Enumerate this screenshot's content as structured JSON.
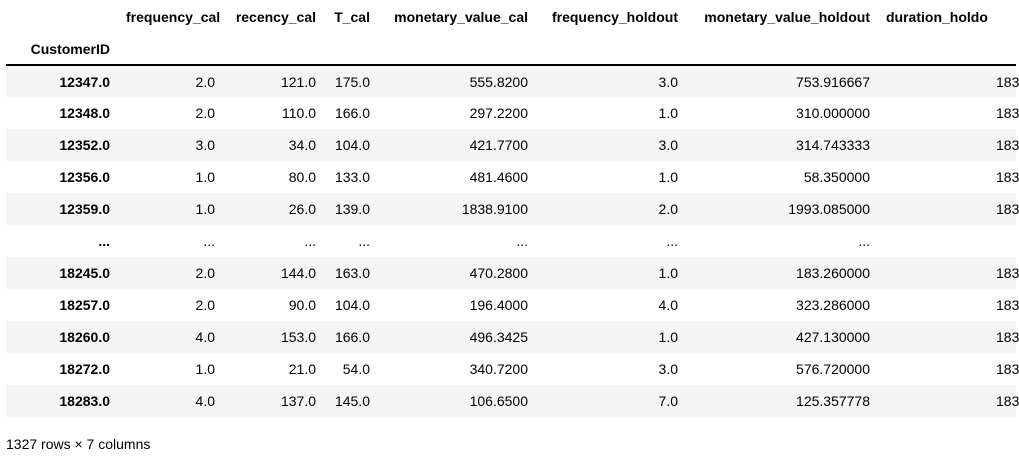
{
  "table": {
    "index_name": "CustomerID",
    "columns": [
      "frequency_cal",
      "recency_cal",
      "T_cal",
      "monetary_value_cal",
      "frequency_holdout",
      "monetary_value_holdout",
      "duration_holdo"
    ],
    "rows": [
      {
        "index": "12347.0",
        "cells": [
          "2.0",
          "121.0",
          "175.0",
          "555.8200",
          "3.0",
          "753.916667",
          "183"
        ]
      },
      {
        "index": "12348.0",
        "cells": [
          "2.0",
          "110.0",
          "166.0",
          "297.2200",
          "1.0",
          "310.000000",
          "183"
        ]
      },
      {
        "index": "12352.0",
        "cells": [
          "3.0",
          "34.0",
          "104.0",
          "421.7700",
          "3.0",
          "314.743333",
          "183"
        ]
      },
      {
        "index": "12356.0",
        "cells": [
          "1.0",
          "80.0",
          "133.0",
          "481.4600",
          "1.0",
          "58.350000",
          "183"
        ]
      },
      {
        "index": "12359.0",
        "cells": [
          "1.0",
          "26.0",
          "139.0",
          "1838.9100",
          "2.0",
          "1993.085000",
          "183"
        ]
      },
      {
        "index": "...",
        "cells": [
          "...",
          "...",
          "...",
          "...",
          "...",
          "...",
          ""
        ]
      },
      {
        "index": "18245.0",
        "cells": [
          "2.0",
          "144.0",
          "163.0",
          "470.2800",
          "1.0",
          "183.260000",
          "183"
        ]
      },
      {
        "index": "18257.0",
        "cells": [
          "2.0",
          "90.0",
          "104.0",
          "196.4000",
          "4.0",
          "323.286000",
          "183"
        ]
      },
      {
        "index": "18260.0",
        "cells": [
          "4.0",
          "153.0",
          "166.0",
          "496.3425",
          "1.0",
          "427.130000",
          "183"
        ]
      },
      {
        "index": "18272.0",
        "cells": [
          "1.0",
          "21.0",
          "54.0",
          "340.7200",
          "3.0",
          "576.720000",
          "183"
        ]
      },
      {
        "index": "18283.0",
        "cells": [
          "4.0",
          "137.0",
          "145.0",
          "106.6500",
          "7.0",
          "125.357778",
          "183"
        ]
      }
    ]
  },
  "footer": "1327 rows × 7 columns"
}
